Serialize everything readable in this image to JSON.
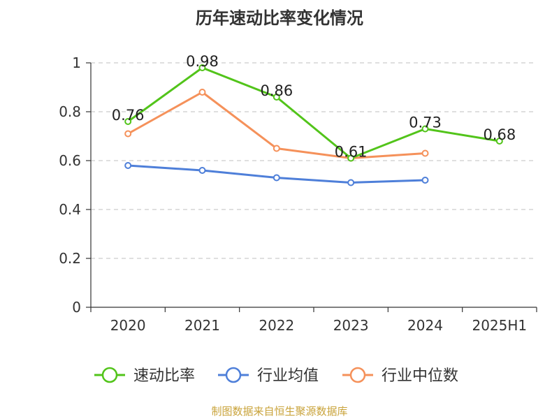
{
  "chart_data": {
    "type": "line",
    "title": "历年速动比率变化情况",
    "categories": [
      "2020",
      "2021",
      "2022",
      "2023",
      "2024",
      "2025H1"
    ],
    "ylim": [
      0,
      1
    ],
    "yticks": [
      0,
      0.2,
      0.4,
      0.6,
      0.8,
      1
    ],
    "ytick_labels": [
      "0",
      "0.2",
      "0.4",
      "0.6",
      "0.8",
      "1"
    ],
    "grid": true,
    "legend_position": "bottom",
    "series": [
      {
        "name": "速动比率",
        "color": "#52c41a",
        "values": [
          0.76,
          0.98,
          0.86,
          0.61,
          0.73,
          0.68
        ],
        "labels": [
          "0.76",
          "0.98",
          "0.86",
          "0.61",
          "0.73",
          "0.68"
        ]
      },
      {
        "name": "行业均值",
        "color": "#4e7fd9",
        "values": [
          0.58,
          0.56,
          0.53,
          0.51,
          0.52,
          null
        ]
      },
      {
        "name": "行业中位数",
        "color": "#f5915a",
        "values": [
          0.71,
          0.88,
          0.65,
          0.61,
          0.63,
          null
        ]
      }
    ]
  },
  "footer": {
    "source": "制图数据来自恒生聚源数据库"
  }
}
